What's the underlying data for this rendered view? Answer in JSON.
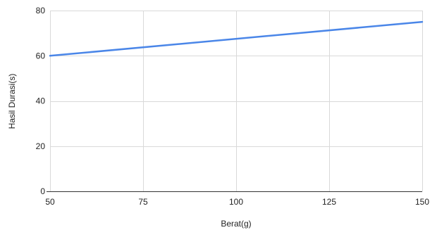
{
  "chart_data": {
    "type": "line",
    "title": "",
    "xlabel": "Berat(g)",
    "ylabel": "Hasil Durasi(s)",
    "xlim": [
      50,
      150
    ],
    "ylim": [
      0,
      80
    ],
    "x_ticks": [
      50,
      75,
      100,
      125,
      150
    ],
    "y_ticks": [
      0,
      20,
      40,
      60,
      80
    ],
    "grid": true,
    "legend": "none",
    "series": [
      {
        "color": "#4a86e8",
        "x": [
          50,
          150
        ],
        "y": [
          60,
          75
        ]
      }
    ]
  }
}
